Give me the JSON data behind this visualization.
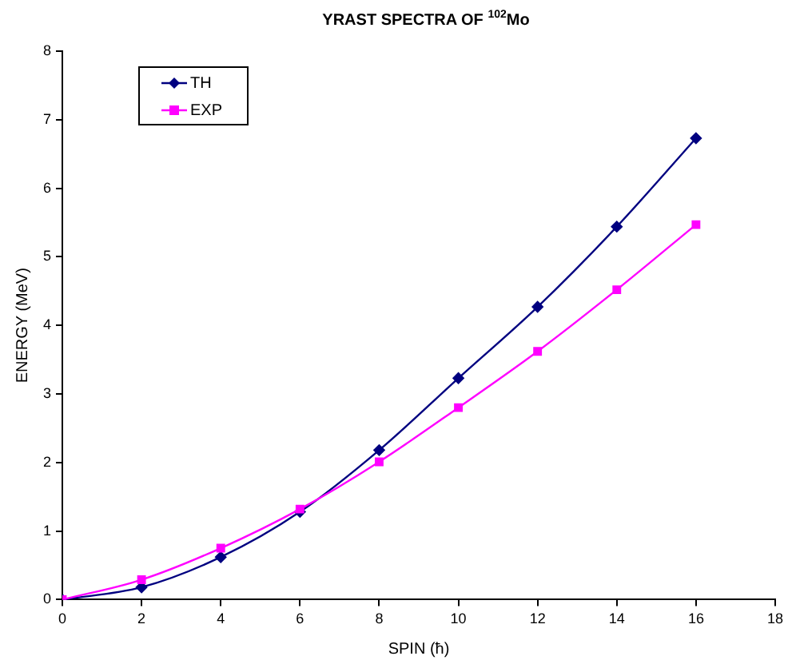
{
  "chart_data": {
    "type": "line",
    "title": "YRAST SPECTRA OF $^{102}$Mo",
    "xlabel": "SPIN (ħ)",
    "ylabel": "ENERGY (MeV)",
    "x": [
      0,
      2,
      4,
      6,
      8,
      10,
      12,
      14,
      16
    ],
    "series": [
      {
        "name": "TH",
        "color": "#000080",
        "marker": "diamond",
        "values": [
          0,
          0.18,
          0.62,
          1.28,
          2.18,
          3.23,
          4.27,
          5.44,
          6.73
        ]
      },
      {
        "name": "EXP",
        "color": "#ff00ff",
        "marker": "square",
        "values": [
          0,
          0.29,
          0.75,
          1.32,
          2.01,
          2.8,
          3.62,
          4.52,
          5.47
        ]
      }
    ],
    "xlim": [
      0,
      18
    ],
    "xticks": [
      0,
      2,
      4,
      6,
      8,
      10,
      12,
      14,
      16,
      18
    ],
    "ylim": [
      0,
      8
    ],
    "yticks": [
      0,
      1,
      2,
      3,
      4,
      5,
      6,
      7,
      8
    ],
    "grid": false,
    "legend": "top left",
    "line_style": "solid"
  }
}
